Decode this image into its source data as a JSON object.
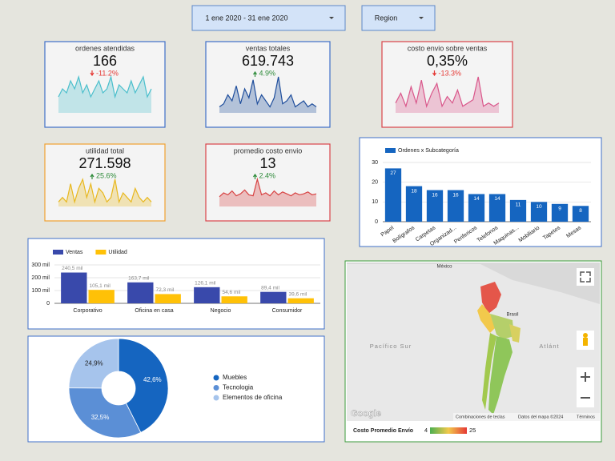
{
  "controls": {
    "date_range": "1 ene 2020 - 31 ene 2020",
    "region": "Region"
  },
  "scorecards": [
    {
      "title": "ordenes atendidas",
      "value": "166",
      "change": "-11.2%",
      "direction": "down",
      "color": "#3f6fc8",
      "line_color": "#4bbfcc",
      "sparkline": [
        4,
        6,
        5,
        8,
        6,
        9,
        5,
        7,
        4,
        6,
        8,
        5,
        6,
        9,
        4,
        7,
        6,
        5,
        8,
        5,
        7,
        9,
        4,
        6
      ]
    },
    {
      "title": "ventas totales",
      "value": "619.743",
      "change": "4.9%",
      "direction": "up",
      "color": "#3f6fc8",
      "line_color": "#1f4e9c",
      "sparkline": [
        2,
        3,
        6,
        4,
        9,
        3,
        8,
        5,
        11,
        3,
        6,
        4,
        2,
        5,
        12,
        3,
        4,
        6,
        2,
        3,
        4,
        2,
        3,
        2
      ]
    },
    {
      "title": "costo envio sobre ventas",
      "value": "0,35%",
      "change": "-13.3%",
      "direction": "down",
      "color": "#d9434a",
      "line_color": "#d9568a",
      "sparkline": [
        0.3,
        0.6,
        0.2,
        0.8,
        0.3,
        1.0,
        0.2,
        0.6,
        0.9,
        0.2,
        0.5,
        0.3,
        0.7,
        0.2,
        0.3,
        0.4,
        1.1,
        0.2,
        0.3,
        0.2,
        0.3
      ]
    },
    {
      "title": "utilidad total",
      "value": "271.598",
      "change": "25.6%",
      "direction": "up",
      "color": "#f0a030",
      "line_color": "#e8b820",
      "sparkline": [
        1,
        2,
        1,
        5,
        1,
        4,
        6,
        2,
        5,
        1,
        4,
        3,
        1,
        2,
        6,
        1,
        3,
        2,
        1,
        4,
        2,
        1,
        2,
        1
      ]
    },
    {
      "title": "promedio costo envio",
      "value": "13",
      "change": "2.4%",
      "direction": "up",
      "color": "#d9434a",
      "line_color": "#d84343",
      "sparkline": [
        10,
        14,
        12,
        16,
        11,
        13,
        17,
        12,
        11,
        28,
        12,
        14,
        11,
        16,
        12,
        15,
        13,
        11,
        14,
        12,
        13,
        15,
        12,
        13
      ]
    }
  ],
  "chart_data": [
    {
      "type": "bar",
      "series": [
        {
          "name": "Ordenes x Subcategoría",
          "color": "#1565c0",
          "values": [
            27,
            18,
            16,
            16,
            14,
            14,
            11,
            10,
            9,
            8
          ]
        }
      ],
      "categories": [
        "Papel",
        "Bolígrafos",
        "Carpetas",
        "Organizad...",
        "Perifericos",
        "Telefonos",
        "Maquinas...",
        "Mobiliario",
        "Tapetes",
        "Mesas"
      ],
      "ylim": [
        0,
        30
      ],
      "yticks": [
        0,
        10,
        20,
        30
      ],
      "grid": true
    },
    {
      "type": "bar",
      "categories": [
        "Corporativo",
        "Oficina en casa",
        "Negocio",
        "Consumidor"
      ],
      "series": [
        {
          "name": "Ventas",
          "color": "#3949ab",
          "values": [
            240.5,
            163.7,
            126.1,
            89.4
          ],
          "value_labels": [
            "240,5 mil",
            "163,7 mil",
            "126,1 mil",
            "89,4 mil"
          ]
        },
        {
          "name": "Utilidad",
          "color": "#ffc107",
          "values": [
            105.1,
            72.3,
            54.6,
            39.6
          ],
          "value_labels": [
            "105,1 mil",
            "72,3 mil",
            "54,6 mil",
            "39,6 mil"
          ]
        }
      ],
      "ylim": [
        0,
        300
      ],
      "yticks": [
        0,
        {
          "value": 100,
          "label": "100 mil"
        },
        {
          "value": 200,
          "label": "200 mil"
        },
        {
          "value": 300,
          "label": "300 mil"
        }
      ],
      "grid": true
    },
    {
      "type": "donut",
      "categories": [
        "Muebles",
        "Tecnologia",
        "Elementos de oficina"
      ],
      "values": [
        42.6,
        32.5,
        24.9
      ],
      "value_labels": [
        "42,6%",
        "32,5%",
        "24,9%"
      ],
      "colors": [
        "#1565c0",
        "#5b8fd6",
        "#a6c4ec"
      ]
    }
  ],
  "map": {
    "labels": [
      "México",
      "Pacífico Sur",
      "Atlánt",
      "Brasil"
    ],
    "attribution": "Google",
    "footer": [
      "Combinaciones de teclas",
      "Datos del mapa ©2024",
      "Términos"
    ],
    "legend_title": "Costo Promedio Envío",
    "legend_min": 4,
    "legend_max": 25
  }
}
